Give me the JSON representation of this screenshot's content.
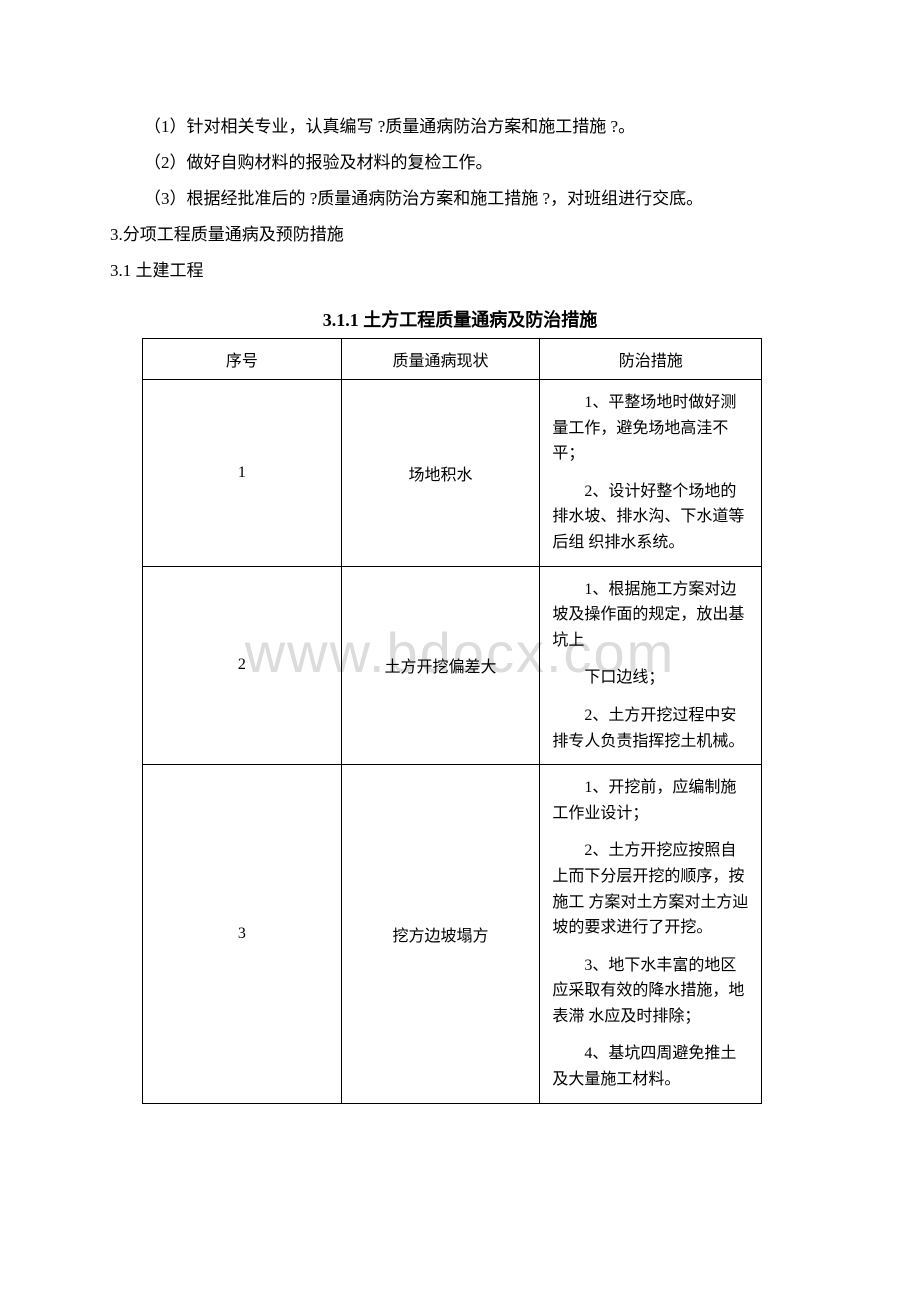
{
  "watermark_text": "www.bdocx.com",
  "paragraphs": [
    "（1）针对相关专业，认真编写 ?质量通病防治方案和施工措施 ?。",
    "（2）做好自购材料的报验及材料的复检工作。",
    "（3）根据经批准后的 ?质量通病防治方案和施工措施 ?，对班组进行交底。"
  ],
  "paragraphs_noindent": [
    "3.分项工程质量通病及预防措施",
    "3.1 土建工程"
  ],
  "table_title": "3.1.1 土方工程质量通病及防治措施",
  "table": {
    "headers": [
      "序号",
      "质量通病现状",
      "防治措施"
    ],
    "rows": [
      {
        "seq": "1",
        "issue": "场地积水",
        "measures": [
          "1、平整场地时做好测量工作，避免场地高洼不平；",
          "2、设计好整个场地的排水坡、排水沟、下水道等后组 织排水系统。"
        ]
      },
      {
        "seq": "2",
        "issue": "土方开挖偏差大",
        "measures": [
          "1、根据施工方案对边坡及操作面的规定，放出基坑上",
          "下口边线；",
          "2、土方开挖过程中安排专人负责指挥挖土机械。"
        ]
      },
      {
        "seq": "3",
        "issue": "挖方边坡塌方",
        "measures": [
          "1、开挖前，应编制施工作业设计；",
          "2、土方开挖应按照自上而下分层开挖的顺序，按施工 方案对土方案对土方辿坡的要求进行了开挖。",
          "3、地下水丰富的地区应采取有效的降水措施，地表滞 水应及时排除；",
          "4、基坑四周避免推土及大量施工材料。"
        ]
      }
    ]
  }
}
